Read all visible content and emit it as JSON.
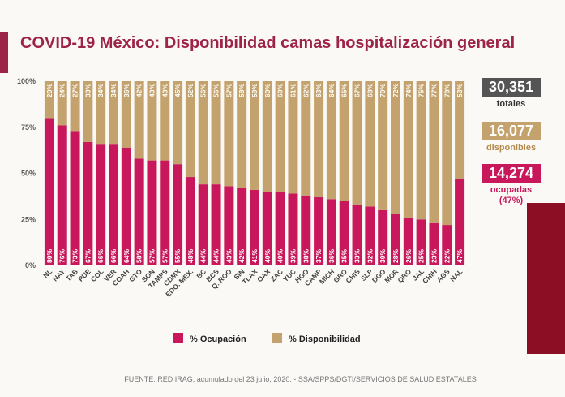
{
  "chart_data": {
    "type": "stacked_bar",
    "title": "COVID-19 México: Disponibilidad camas hospitalización general",
    "categories": [
      "NL",
      "NAY",
      "TAB",
      "PUE",
      "COL",
      "VER",
      "COAH",
      "GTO",
      "SON",
      "TAMPS",
      "CDMX",
      "EDO. MEX.",
      "BC",
      "BCS",
      "Q. ROO",
      "SIN",
      "TLAX",
      "OAX",
      "ZAC",
      "YUC",
      "HGO",
      "CAMP",
      "MICH",
      "GRO",
      "CHIS",
      "SLP",
      "DGO",
      "MOR",
      "QRO",
      "JAL",
      "CHIH",
      "AGS",
      "NAL"
    ],
    "series": [
      {
        "name": "% Ocupación",
        "color": "#c8175a",
        "values": [
          80,
          76,
          73,
          67,
          66,
          66,
          64,
          58,
          57,
          57,
          55,
          48,
          44,
          44,
          43,
          42,
          41,
          40,
          40,
          39,
          38,
          37,
          36,
          35,
          33,
          32,
          30,
          28,
          26,
          25,
          23,
          22,
          47
        ],
        "value_labels": [
          "80%",
          "76%",
          "73%",
          "67%",
          "66%",
          "66%",
          "64%",
          "58%",
          "57%",
          "57%",
          "55%",
          "48%",
          "44%",
          "44%",
          "43%",
          "42%",
          "41%",
          "40%",
          "40%",
          "39%",
          "38%",
          "37%",
          "36%",
          "35%",
          "33%",
          "32%",
          "30%",
          "28%",
          "26%",
          "25%",
          "23%",
          "22%",
          "47%"
        ]
      },
      {
        "name": "% Disponibilidad",
        "color": "#c4a26e",
        "values": [
          20,
          24,
          27,
          33,
          34,
          34,
          36,
          42,
          43,
          43,
          45,
          52,
          56,
          56,
          57,
          58,
          59,
          60,
          60,
          61,
          62,
          63,
          64,
          65,
          67,
          68,
          70,
          72,
          74,
          75,
          77,
          78,
          53
        ],
        "value_labels": [
          "20%",
          "24%",
          "27%",
          "33%",
          "34%",
          "34%",
          "36%",
          "42%",
          "43%",
          "43%",
          "45%",
          "52%",
          "56%",
          "56%",
          "57%",
          "58%",
          "59%",
          "60%",
          "60%",
          "61%",
          "62%",
          "63%",
          "64%",
          "65%",
          "67%",
          "68%",
          "70%",
          "72%",
          "74%",
          "75%",
          "77%",
          "78%",
          "53%"
        ]
      }
    ],
    "ylim": [
      0,
      100
    ],
    "yticks": [
      {
        "value": 0,
        "label": "0%"
      },
      {
        "value": 25,
        "label": "25%"
      },
      {
        "value": 50,
        "label": "50%"
      },
      {
        "value": 75,
        "label": "75%"
      },
      {
        "value": 100,
        "label": "100%"
      }
    ],
    "grid": false,
    "summary": [
      {
        "value": "30,351",
        "label": "totales"
      },
      {
        "value": "16,077",
        "label": "disponibles"
      },
      {
        "value": "14,274",
        "label": "ocupadas (47%)"
      }
    ],
    "source": "FUENTE: RED IRAG, acumulado del 23 julio, 2020. -  SSA/SPPS/DGTI/SERVICIOS DE SALUD ESTATALES"
  }
}
